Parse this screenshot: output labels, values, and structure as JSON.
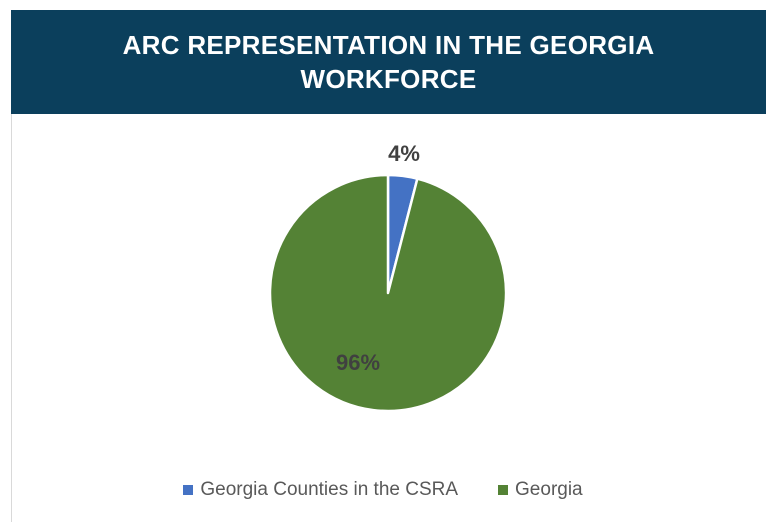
{
  "chart_data": {
    "type": "pie",
    "title": "ARC REPRESENTATION IN THE GEORGIA WORKFORCE",
    "slices": [
      {
        "name": "Georgia Counties in the CSRA",
        "value": 4,
        "label": "4%",
        "color": "#4472c4"
      },
      {
        "name": "Georgia",
        "value": 96,
        "label": "96%",
        "color": "#548235"
      }
    ],
    "legend_position": "bottom"
  },
  "colors": {
    "title_banner": "#0b3f5c",
    "title_text": "#ffffff",
    "data_label": "#404040",
    "legend_text": "#595959"
  }
}
